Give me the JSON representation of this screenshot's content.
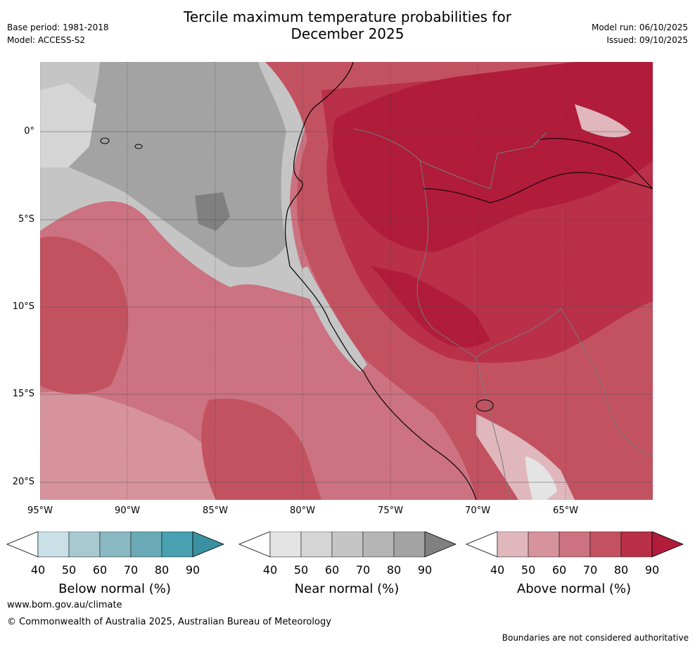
{
  "title_line1": "Tercile maximum temperature probabilities for",
  "title_line2": "December 2025",
  "base_period": "Base period: 1981-2018",
  "model": "Model: ACCESS-S2",
  "model_run": "Model run: 06/10/2025",
  "issued": "Issued: 09/10/2025",
  "lat_labels": [
    "0°",
    "5°S",
    "10°S",
    "15°S",
    "20°S"
  ],
  "lon_labels": [
    "95°W",
    "90°W",
    "85°W",
    "80°W",
    "75°W",
    "70°W",
    "65°W"
  ],
  "colorbars": [
    {
      "label": "Below normal (%)",
      "ticks": [
        "40",
        "50",
        "60",
        "70",
        "80",
        "90"
      ],
      "colors": [
        "#c9e0e6",
        "#a9c9d0",
        "#8ab8c2",
        "#6aaab6",
        "#48a0b0",
        "#3a8fa1"
      ]
    },
    {
      "label": "Near normal (%)",
      "ticks": [
        "40",
        "50",
        "60",
        "70",
        "80",
        "90"
      ],
      "colors": [
        "#e4e4e4",
        "#d5d5d5",
        "#c5c5c5",
        "#b5b5b5",
        "#a3a3a3",
        "#808080"
      ]
    },
    {
      "label": "Above normal (%)",
      "ticks": [
        "40",
        "50",
        "60",
        "70",
        "80",
        "90"
      ],
      "colors": [
        "#e0b7bd",
        "#d6939c",
        "#cc7280",
        "#c35261",
        "#b93048",
        "#b01c3a"
      ]
    }
  ],
  "website": "www.bom.gov.au/climate",
  "copyright": "© Commonwealth of Australia 2025, Australian Bureau of Meteorology",
  "disclaimer": "Boundaries are not considered authoritative"
}
